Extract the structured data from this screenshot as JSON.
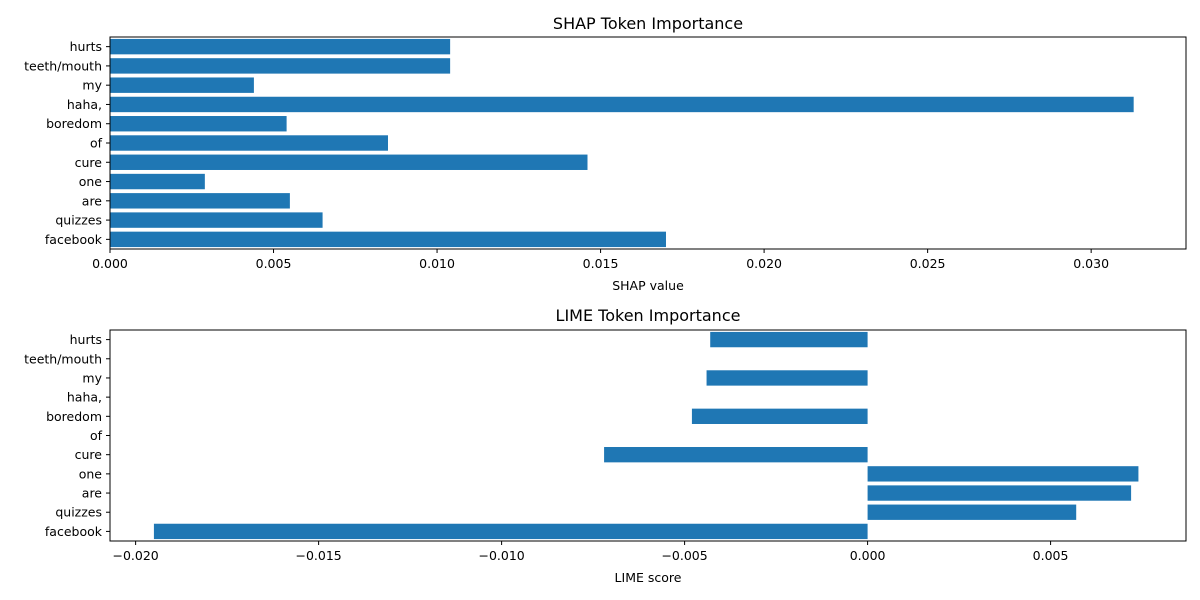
{
  "chart_data": [
    {
      "type": "bar",
      "orientation": "horizontal",
      "title": "SHAP Token Importance",
      "xlabel": "SHAP value",
      "ylabel": "",
      "categories": [
        "hurts",
        "teeth/mouth",
        "my",
        "haha,",
        "boredom",
        "of",
        "cure",
        "one",
        "are",
        "quizzes",
        "facebook"
      ],
      "values": [
        0.0104,
        0.0104,
        0.0044,
        0.0313,
        0.0054,
        0.0085,
        0.0146,
        0.0029,
        0.0055,
        0.0065,
        0.017
      ],
      "xlim": [
        0,
        0.0329
      ],
      "xticks": [
        0.0,
        0.005,
        0.01,
        0.015,
        0.02,
        0.025,
        0.03
      ],
      "xtick_labels": [
        "0.000",
        "0.005",
        "0.010",
        "0.015",
        "0.020",
        "0.025",
        "0.030"
      ],
      "grid": false,
      "color": "#1f77b4"
    },
    {
      "type": "bar",
      "orientation": "horizontal",
      "title": "LIME Token Importance",
      "xlabel": "LIME score",
      "ylabel": "",
      "categories": [
        "hurts",
        "teeth/mouth",
        "my",
        "haha,",
        "boredom",
        "of",
        "cure",
        "one",
        "are",
        "quizzes",
        "facebook"
      ],
      "values": [
        -0.0043,
        0,
        -0.0044,
        0,
        -0.0048,
        0,
        -0.0072,
        0.0074,
        0.0072,
        0.0057,
        -0.0195
      ],
      "xlim": [
        -0.0207,
        0.0087
      ],
      "xticks": [
        -0.02,
        -0.015,
        -0.01,
        -0.005,
        0.0,
        0.005
      ],
      "xtick_labels": [
        "−0.020",
        "−0.015",
        "−0.010",
        "−0.005",
        "0.000",
        "0.005"
      ],
      "grid": false,
      "color": "#1f77b4"
    }
  ]
}
